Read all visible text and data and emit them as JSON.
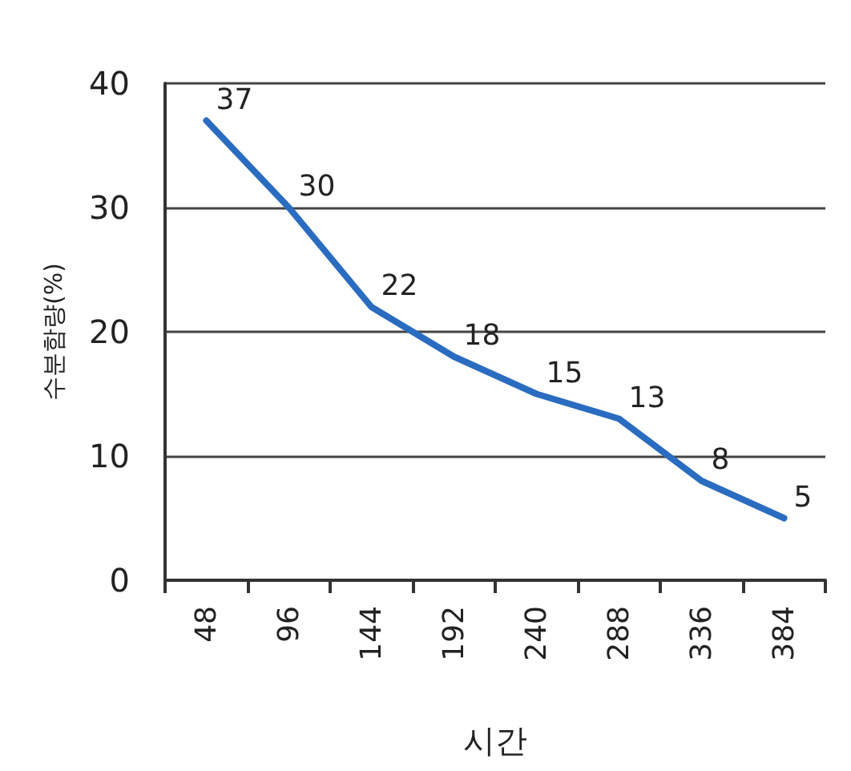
{
  "chart_data": {
    "type": "line",
    "xlabel": "시간",
    "ylabel": "수분함량(%)",
    "categories": [
      "48",
      "96",
      "144",
      "192",
      "240",
      "288",
      "336",
      "384"
    ],
    "series": [
      {
        "color": "#2a6cbf",
        "values": [
          37,
          30,
          22,
          18,
          15,
          13,
          8,
          5
        ]
      }
    ],
    "ylim": [
      0,
      40
    ],
    "yticks": [
      0,
      10,
      20,
      30,
      40
    ],
    "grid": "y",
    "data_labels": true,
    "marker": "none",
    "line_style": "solid"
  }
}
